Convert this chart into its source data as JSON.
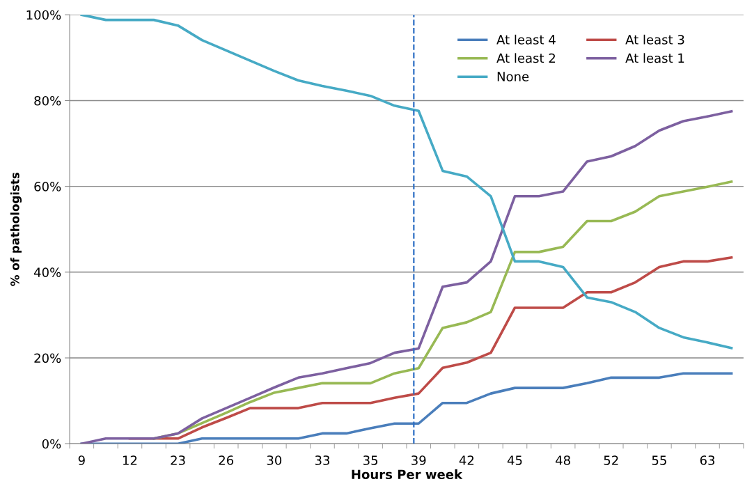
{
  "chart_data": {
    "type": "line",
    "xlabel": "Hours Per week",
    "ylabel": "% of pathologists",
    "categories": [
      "9",
      null,
      "12",
      null,
      "23",
      null,
      "26",
      null,
      "30",
      null,
      "33",
      null,
      "35",
      null,
      "39",
      null,
      "42",
      null,
      "45",
      null,
      "48",
      null,
      "52",
      null,
      "55",
      null,
      "63",
      null
    ],
    "series": [
      {
        "name": "At least 4",
        "color": "#4a7ebb",
        "values": [
          0,
          0,
          0,
          0,
          0,
          1.2,
          1.2,
          1.2,
          1.2,
          1.2,
          2.4,
          2.4,
          3.6,
          4.7,
          4.7,
          9.5,
          9.5,
          11.7,
          13.0,
          13.0,
          13.0,
          14.1,
          15.4,
          15.4,
          15.4,
          16.4,
          16.4,
          16.4
        ]
      },
      {
        "name": "At least 3",
        "color": "#be4b48",
        "values": [
          null,
          null,
          1.2,
          1.2,
          1.2,
          3.8,
          6.0,
          8.3,
          8.3,
          8.3,
          9.5,
          9.5,
          9.5,
          10.7,
          11.7,
          17.7,
          18.9,
          21.2,
          31.7,
          31.7,
          31.7,
          35.3,
          35.3,
          37.6,
          41.2,
          42.5,
          42.5,
          43.4
        ]
      },
      {
        "name": "At least 2",
        "color": "#98b954",
        "values": [
          null,
          null,
          null,
          1.2,
          2.4,
          4.8,
          7.2,
          9.7,
          11.9,
          13.0,
          14.1,
          14.1,
          14.1,
          16.4,
          17.6,
          27.0,
          28.3,
          30.7,
          44.7,
          44.7,
          45.9,
          51.9,
          51.9,
          54.1,
          57.7,
          58.8,
          59.9,
          61.1
        ]
      },
      {
        "name": "At least 1",
        "color": "#7d60a0",
        "values": [
          0,
          1.2,
          1.2,
          1.2,
          2.4,
          5.9,
          8.3,
          10.7,
          13.1,
          15.4,
          16.4,
          17.6,
          18.8,
          21.2,
          22.2,
          36.6,
          37.6,
          42.5,
          57.7,
          57.7,
          58.8,
          65.8,
          67.0,
          69.4,
          73.0,
          75.2,
          76.3,
          77.5
        ]
      },
      {
        "name": "None",
        "color": "#46aac5",
        "values": [
          100,
          98.8,
          98.8,
          98.8,
          97.5,
          94.1,
          91.7,
          89.3,
          86.9,
          84.7,
          83.4,
          82.3,
          81.1,
          78.8,
          77.6,
          63.6,
          62.3,
          57.7,
          42.5,
          42.5,
          41.2,
          34.1,
          33.0,
          30.7,
          27.0,
          24.8,
          23.6,
          22.3
        ]
      }
    ],
    "ylim": [
      0,
      100
    ],
    "yticks": [
      {
        "value": 0,
        "label": "0%"
      },
      {
        "value": 20,
        "label": "20%"
      },
      {
        "value": 40,
        "label": "40%"
      },
      {
        "value": 60,
        "label": "60%"
      },
      {
        "value": 80,
        "label": "80%"
      },
      {
        "value": 100,
        "label": "100%"
      }
    ],
    "ref_lines": [
      {
        "axis": "x",
        "value": "39",
        "color": "#2e6fc4",
        "line_style": "dashed"
      }
    ],
    "grid": "y",
    "legend": "top right",
    "marker": "none",
    "line_style": "solid"
  }
}
